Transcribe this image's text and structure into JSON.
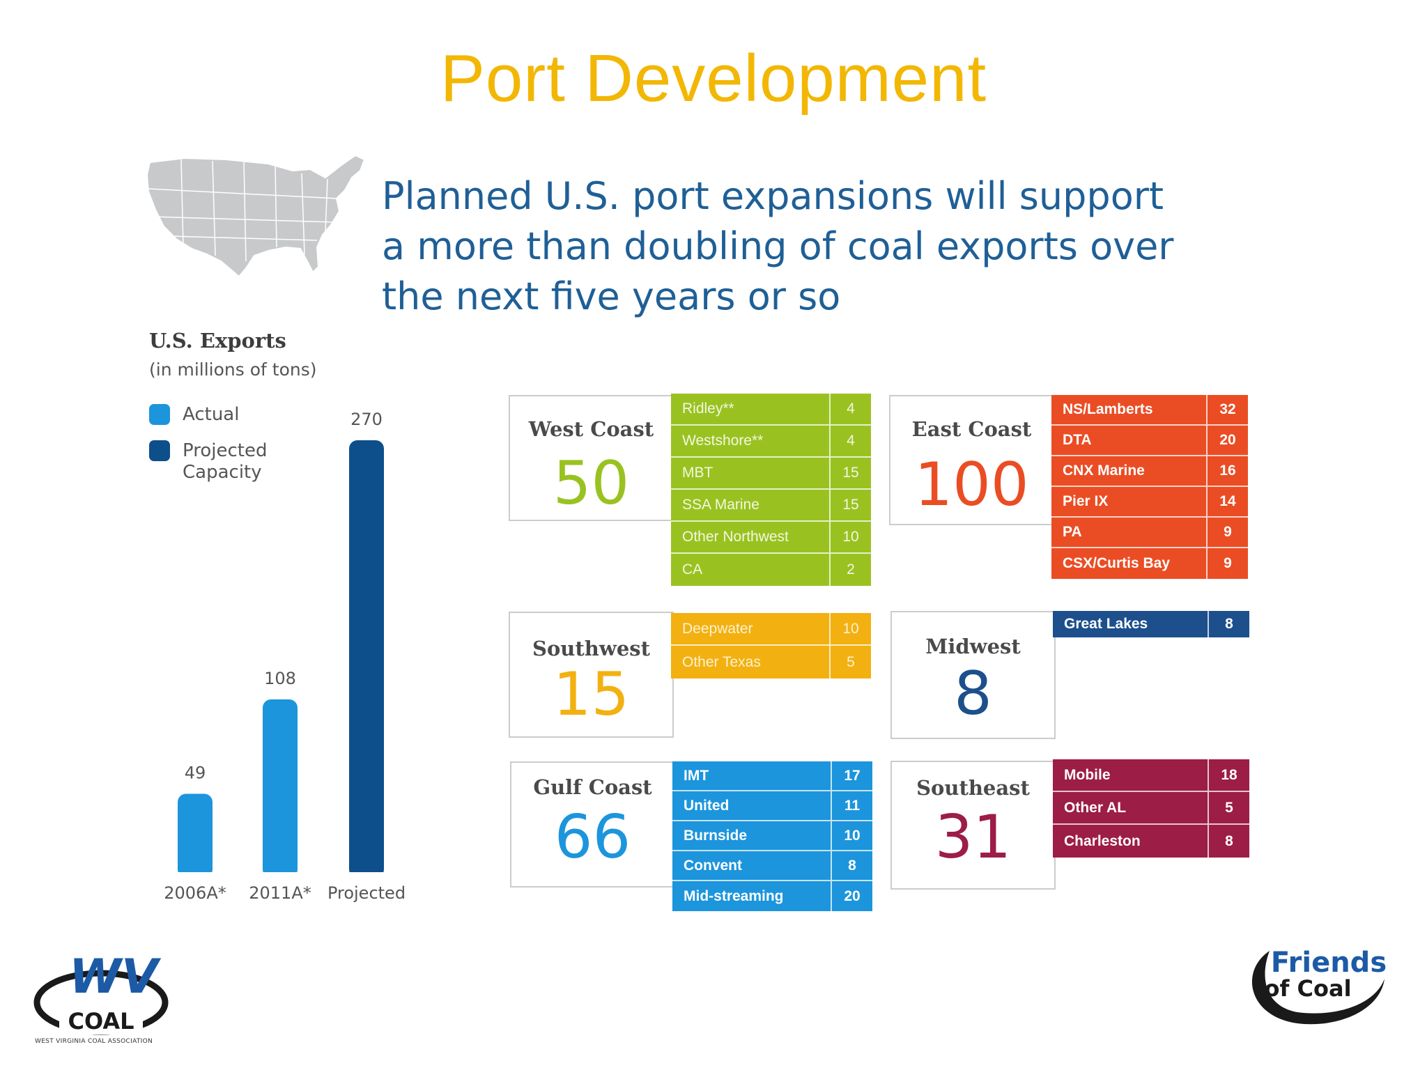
{
  "slide": {
    "title": "Port Development",
    "headline_lines": [
      "Planned U.S. port expansions will support",
      "a more than doubling of coal exports over",
      "the next five years or so"
    ]
  },
  "colors": {
    "title": "#f2b705",
    "headline": "#1f5f96",
    "actual": "#1c95dc",
    "projected": "#0d4f8b",
    "west": "#99c221",
    "southwest": "#f2b111",
    "gulf": "#1c95dc",
    "east": "#ea4d24",
    "midwest": "#1c4f8c",
    "southeast": "#9c1d46"
  },
  "chart_data": [
    {
      "type": "bar",
      "title": "U.S. Exports",
      "subtitle": "(in millions of tons)",
      "categories": [
        "2006A*",
        "2011A*",
        "Projected"
      ],
      "values": [
        49,
        108,
        270
      ],
      "series_by_bar": [
        "Actual",
        "Actual",
        "Projected Capacity"
      ],
      "legend": [
        {
          "label": "Actual",
          "color": "#1c95dc"
        },
        {
          "label": "Projected Capacity",
          "color": "#0d4f8b"
        }
      ],
      "ylim": [
        0,
        270
      ],
      "grid": false,
      "legend_position": "top-left"
    },
    {
      "type": "table",
      "regions": [
        {
          "name": "West Coast",
          "total": "50",
          "color": "#99c221",
          "ports": [
            [
              "Ridley**",
              "4"
            ],
            [
              "Westshore**",
              "4"
            ],
            [
              "MBT",
              "15"
            ],
            [
              "SSA Marine",
              "15"
            ],
            [
              "Other Northwest",
              "10"
            ],
            [
              "CA",
              "2"
            ]
          ]
        },
        {
          "name": "Southwest",
          "total": "15",
          "color": "#f2b111",
          "ports": [
            [
              "Deepwater",
              "10"
            ],
            [
              "Other Texas",
              "5"
            ]
          ]
        },
        {
          "name": "Gulf Coast",
          "total": "66",
          "color": "#1c95dc",
          "ports": [
            [
              "IMT",
              "17"
            ],
            [
              "United",
              "11"
            ],
            [
              "Burnside",
              "10"
            ],
            [
              "Convent",
              "8"
            ],
            [
              "Mid-streaming",
              "20"
            ]
          ]
        },
        {
          "name": "East Coast",
          "total": "100",
          "color": "#ea4d24",
          "ports": [
            [
              "NS/Lamberts",
              "32"
            ],
            [
              "DTA",
              "20"
            ],
            [
              "CNX Marine",
              "16"
            ],
            [
              "Pier IX",
              "14"
            ],
            [
              "PA",
              "9"
            ],
            [
              "CSX/Curtis Bay",
              "9"
            ]
          ]
        },
        {
          "name": "Midwest",
          "total": "8",
          "color": "#1c4f8c",
          "ports": [
            [
              "Great Lakes",
              "8"
            ]
          ]
        },
        {
          "name": "Southeast",
          "total": "31",
          "color": "#9c1d46",
          "ports": [
            [
              "Mobile",
              "18"
            ],
            [
              "Other AL",
              "5"
            ],
            [
              "Charleston",
              "8"
            ]
          ]
        }
      ]
    }
  ],
  "logos": {
    "wv_coal": {
      "main": "WV",
      "sub": "COAL",
      "fine_print": "WEST VIRGINIA COAL ASSOCIATION"
    },
    "friends_of_coal": {
      "line1": "Friends",
      "line2": "of Coal"
    }
  }
}
